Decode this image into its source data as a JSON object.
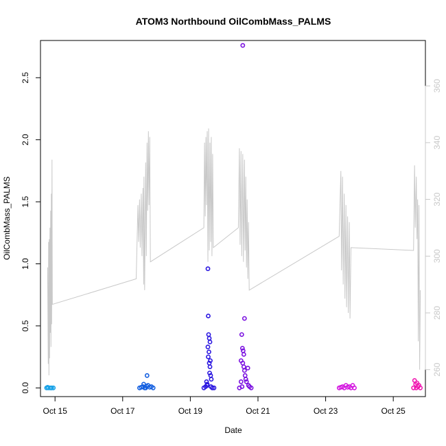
{
  "chart_data": {
    "type": "scatter",
    "title": "ATOM3 Northbound OilCombMass_PALMS",
    "xlabel": "Date",
    "ylabel": "OilCombMass_PALMS",
    "ylim": [
      -0.07,
      2.8
    ],
    "xlim": [
      14.57,
      25.95
    ],
    "y2lim": [
      250.5,
      376
    ],
    "x_ticks": [
      {
        "value": 15,
        "label": "Oct 15"
      },
      {
        "value": 17,
        "label": "Oct 17"
      },
      {
        "value": 19,
        "label": "Oct 19"
      },
      {
        "value": 21,
        "label": "Oct 21"
      },
      {
        "value": 23,
        "label": "Oct 23"
      },
      {
        "value": 25,
        "label": "Oct 25"
      }
    ],
    "y_ticks": [
      {
        "value": 0.0,
        "label": "0.0"
      },
      {
        "value": 0.5,
        "label": "0.5"
      },
      {
        "value": 1.0,
        "label": "1.0"
      },
      {
        "value": 1.5,
        "label": "1.5"
      },
      {
        "value": 2.0,
        "label": "2.0"
      },
      {
        "value": 2.5,
        "label": "2.5"
      }
    ],
    "y2_ticks": [
      {
        "value": 260,
        "label": "260"
      },
      {
        "value": 280,
        "label": "280"
      },
      {
        "value": 300,
        "label": "300"
      },
      {
        "value": 320,
        "label": "320"
      },
      {
        "value": 340,
        "label": "340"
      },
      {
        "value": 360,
        "label": "360"
      }
    ],
    "grid": false,
    "colors": {
      "axis": "#000000",
      "secondary_axis": "#c8c8c8",
      "secondary_line": "#c8c8c8"
    },
    "series": [
      {
        "color": "#1aa3e8",
        "points": [
          [
            14.75,
            0.0
          ],
          [
            14.8,
            0.0
          ],
          [
            14.85,
            0.0
          ],
          [
            14.9,
            0.0
          ],
          [
            14.95,
            0.0
          ],
          [
            14.78,
            0.005
          ],
          [
            14.88,
            0.0
          ]
        ]
      },
      {
        "color": "#1560e0",
        "points": [
          [
            17.5,
            0.0
          ],
          [
            17.55,
            0.005
          ],
          [
            17.6,
            0.01
          ],
          [
            17.65,
            0.0
          ],
          [
            17.7,
            0.015
          ],
          [
            17.72,
            0.1
          ],
          [
            17.75,
            0.02
          ],
          [
            17.8,
            0.005
          ],
          [
            17.85,
            0.01
          ],
          [
            17.9,
            0.0
          ],
          [
            17.62,
            0.03
          ],
          [
            17.68,
            0.0
          ]
        ]
      },
      {
        "color": "#2a16e0",
        "points": [
          [
            19.4,
            0.0
          ],
          [
            19.45,
            0.01
          ],
          [
            19.5,
            0.02
          ],
          [
            19.52,
            0.96
          ],
          [
            19.53,
            0.58
          ],
          [
            19.54,
            0.43
          ],
          [
            19.56,
            0.4
          ],
          [
            19.58,
            0.37
          ],
          [
            19.52,
            0.33
          ],
          [
            19.55,
            0.29
          ],
          [
            19.53,
            0.25
          ],
          [
            19.56,
            0.2
          ],
          [
            19.58,
            0.17
          ],
          [
            19.6,
            0.1
          ],
          [
            19.62,
            0.07
          ],
          [
            19.48,
            0.05
          ],
          [
            19.5,
            0.03
          ],
          [
            19.65,
            0.0
          ],
          [
            19.7,
            0.0
          ],
          [
            19.57,
            0.12
          ],
          [
            19.59,
            0.22
          ],
          [
            19.61,
            0.01
          ]
        ]
      },
      {
        "color": "#7b12e0",
        "points": [
          [
            20.45,
            0.0
          ],
          [
            20.5,
            0.05
          ],
          [
            20.55,
            2.76
          ],
          [
            20.6,
            0.56
          ],
          [
            20.52,
            0.43
          ],
          [
            20.54,
            0.32
          ],
          [
            20.56,
            0.3
          ],
          [
            20.58,
            0.27
          ],
          [
            20.5,
            0.22
          ],
          [
            20.55,
            0.2
          ],
          [
            20.58,
            0.17
          ],
          [
            20.6,
            0.14
          ],
          [
            20.62,
            0.1
          ],
          [
            20.64,
            0.07
          ],
          [
            20.66,
            0.05
          ],
          [
            20.7,
            0.16
          ],
          [
            20.72,
            0.02
          ],
          [
            20.75,
            0.01
          ],
          [
            20.8,
            0.0
          ],
          [
            20.53,
            0.01
          ]
        ]
      },
      {
        "color": "#d418e0",
        "points": [
          [
            23.4,
            0.0
          ],
          [
            23.45,
            0.005
          ],
          [
            23.5,
            0.01
          ],
          [
            23.55,
            0.0
          ],
          [
            23.6,
            0.02
          ],
          [
            23.65,
            0.005
          ],
          [
            23.7,
            0.01
          ],
          [
            23.75,
            0.0
          ],
          [
            23.8,
            0.02
          ],
          [
            23.85,
            0.0
          ]
        ]
      },
      {
        "color": "#f018b0",
        "points": [
          [
            25.6,
            0.0
          ],
          [
            25.63,
            0.06
          ],
          [
            25.66,
            0.03
          ],
          [
            25.7,
            0.04
          ],
          [
            25.73,
            0.01
          ],
          [
            25.76,
            0.02
          ],
          [
            25.8,
            0.0
          ],
          [
            25.68,
            0.0
          ]
        ]
      }
    ],
    "secondary_line": [
      [
        14.78,
        296
      ],
      [
        14.8,
        262
      ],
      [
        14.81,
        305
      ],
      [
        14.82,
        258
      ],
      [
        14.83,
        306
      ],
      [
        14.84,
        264
      ],
      [
        14.85,
        310
      ],
      [
        14.86,
        273
      ],
      [
        14.87,
        316
      ],
      [
        14.88,
        268
      ],
      [
        14.89,
        322
      ],
      [
        14.9,
        276
      ],
      [
        14.91,
        334
      ],
      [
        14.92,
        283
      ],
      [
        17.4,
        292
      ],
      [
        17.45,
        318
      ],
      [
        17.47,
        305
      ],
      [
        17.5,
        320
      ],
      [
        17.52,
        303
      ],
      [
        17.55,
        322
      ],
      [
        17.57,
        300
      ],
      [
        17.6,
        324
      ],
      [
        17.62,
        290
      ],
      [
        17.63,
        328
      ],
      [
        17.65,
        288
      ],
      [
        17.68,
        333
      ],
      [
        17.7,
        300
      ],
      [
        17.72,
        340
      ],
      [
        17.74,
        316
      ],
      [
        17.76,
        344
      ],
      [
        17.78,
        318
      ],
      [
        17.8,
        342
      ],
      [
        17.82,
        298
      ],
      [
        19.4,
        310
      ],
      [
        19.42,
        340
      ],
      [
        19.44,
        314
      ],
      [
        19.46,
        342
      ],
      [
        19.48,
        318
      ],
      [
        19.5,
        344
      ],
      [
        19.52,
        298
      ],
      [
        19.54,
        345
      ],
      [
        19.56,
        302
      ],
      [
        19.58,
        340
      ],
      [
        19.6,
        305
      ],
      [
        19.62,
        342
      ],
      [
        19.64,
        300
      ],
      [
        19.66,
        336
      ],
      [
        19.68,
        303
      ],
      [
        20.42,
        310
      ],
      [
        20.45,
        338
      ],
      [
        20.47,
        304
      ],
      [
        20.5,
        337
      ],
      [
        20.52,
        300
      ],
      [
        20.55,
        336
      ],
      [
        20.57,
        298
      ],
      [
        20.6,
        334
      ],
      [
        20.62,
        302
      ],
      [
        20.64,
        328
      ],
      [
        20.66,
        296
      ],
      [
        20.68,
        320
      ],
      [
        20.7,
        292
      ],
      [
        20.72,
        312
      ],
      [
        20.74,
        288
      ],
      [
        23.4,
        307
      ],
      [
        23.45,
        330
      ],
      [
        23.47,
        295
      ],
      [
        23.5,
        328
      ],
      [
        23.52,
        290
      ],
      [
        23.55,
        322
      ],
      [
        23.57,
        285
      ],
      [
        23.6,
        318
      ],
      [
        23.62,
        282
      ],
      [
        23.65,
        314
      ],
      [
        23.67,
        280
      ],
      [
        23.7,
        312
      ],
      [
        23.72,
        278
      ],
      [
        23.75,
        303
      ],
      [
        25.6,
        302
      ],
      [
        25.63,
        332
      ],
      [
        25.65,
        310
      ],
      [
        25.68,
        328
      ],
      [
        25.7,
        306
      ],
      [
        25.72,
        320
      ],
      [
        25.74,
        270
      ],
      [
        25.76,
        318
      ],
      [
        25.78,
        260
      ],
      [
        25.8,
        288
      ]
    ]
  }
}
